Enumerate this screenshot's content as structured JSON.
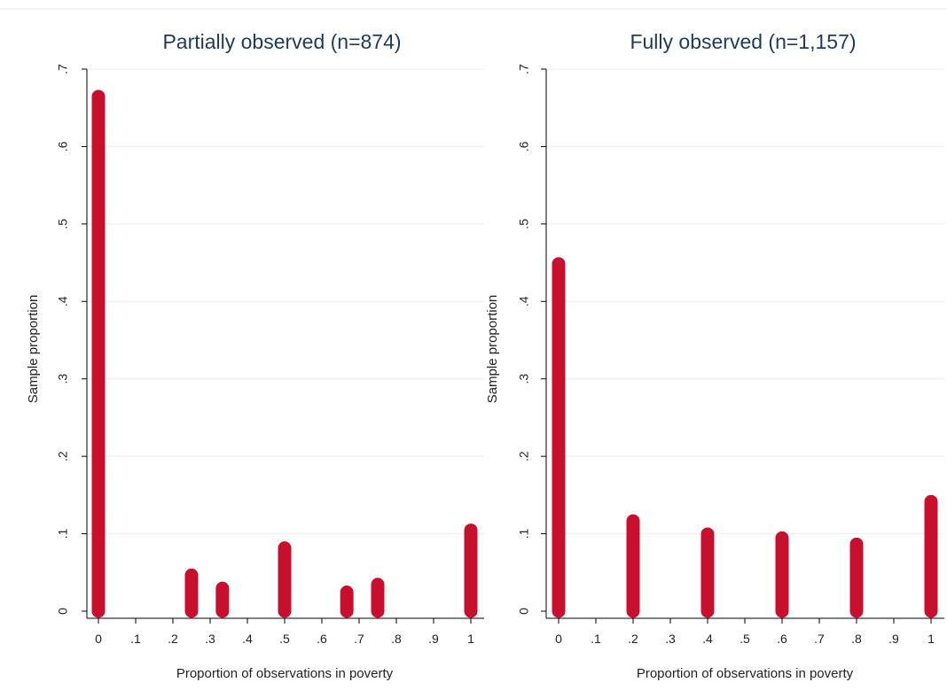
{
  "chart_data": [
    {
      "type": "bar",
      "title": "Partially observed (n=874)",
      "xlabel": "Proportion of observations in poverty",
      "ylabel": "Sample proportion",
      "xlim": [
        0,
        1
      ],
      "ylim": [
        0,
        0.7
      ],
      "xticks": [
        {
          "value": 0,
          "label": "0"
        },
        {
          "value": 0.1,
          "label": ".1"
        },
        {
          "value": 0.2,
          "label": ".2"
        },
        {
          "value": 0.3,
          "label": ".3"
        },
        {
          "value": 0.4,
          "label": ".4"
        },
        {
          "value": 0.5,
          "label": ".5"
        },
        {
          "value": 0.6,
          "label": ".6"
        },
        {
          "value": 0.7,
          "label": ".7"
        },
        {
          "value": 0.8,
          "label": ".8"
        },
        {
          "value": 0.9,
          "label": ".9"
        },
        {
          "value": 1,
          "label": "1"
        }
      ],
      "yticks": [
        {
          "value": 0,
          "label": "0"
        },
        {
          "value": 0.1,
          "label": ".1"
        },
        {
          "value": 0.2,
          "label": ".2"
        },
        {
          "value": 0.3,
          "label": ".3"
        },
        {
          "value": 0.4,
          "label": ".4"
        },
        {
          "value": 0.5,
          "label": ".5"
        },
        {
          "value": 0.6,
          "label": ".6"
        },
        {
          "value": 0.7,
          "label": ".7"
        }
      ],
      "x": [
        0,
        0.25,
        0.333,
        0.5,
        0.667,
        0.75,
        1
      ],
      "values": [
        0.668,
        0.05,
        0.033,
        0.085,
        0.028,
        0.038,
        0.108
      ],
      "grid": true,
      "color": "#c8102e"
    },
    {
      "type": "bar",
      "title": "Fully observed (n=1,157)",
      "xlabel": "Proportion of observations in poverty",
      "ylabel": "Sample proportion",
      "xlim": [
        0,
        1
      ],
      "ylim": [
        0,
        0.7
      ],
      "xticks": [
        {
          "value": 0,
          "label": "0"
        },
        {
          "value": 0.1,
          "label": ".1"
        },
        {
          "value": 0.2,
          "label": ".2"
        },
        {
          "value": 0.3,
          "label": ".3"
        },
        {
          "value": 0.4,
          "label": ".4"
        },
        {
          "value": 0.5,
          "label": ".5"
        },
        {
          "value": 0.6,
          "label": ".6"
        },
        {
          "value": 0.7,
          "label": ".7"
        },
        {
          "value": 0.8,
          "label": ".8"
        },
        {
          "value": 0.9,
          "label": ".9"
        },
        {
          "value": 1,
          "label": "1"
        }
      ],
      "yticks": [
        {
          "value": 0,
          "label": "0"
        },
        {
          "value": 0.1,
          "label": ".1"
        },
        {
          "value": 0.2,
          "label": ".2"
        },
        {
          "value": 0.3,
          "label": ".3"
        },
        {
          "value": 0.4,
          "label": ".4"
        },
        {
          "value": 0.5,
          "label": ".5"
        },
        {
          "value": 0.6,
          "label": ".6"
        },
        {
          "value": 0.7,
          "label": ".7"
        }
      ],
      "x": [
        0,
        0.2,
        0.4,
        0.6,
        0.8,
        1
      ],
      "values": [
        0.452,
        0.12,
        0.103,
        0.098,
        0.09,
        0.145
      ],
      "grid": true,
      "color": "#c8102e"
    }
  ]
}
